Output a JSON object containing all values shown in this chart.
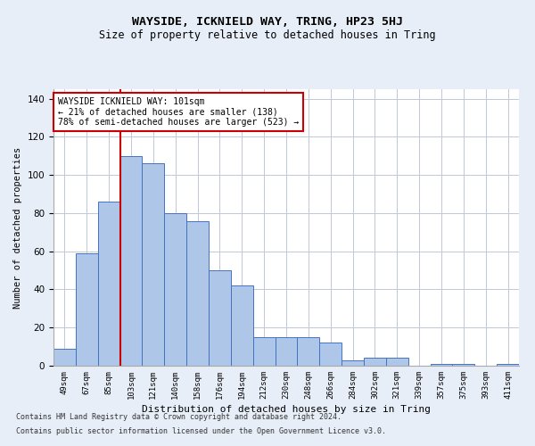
{
  "title": "WAYSIDE, ICKNIELD WAY, TRING, HP23 5HJ",
  "subtitle": "Size of property relative to detached houses in Tring",
  "xlabel": "Distribution of detached houses by size in Tring",
  "ylabel": "Number of detached properties",
  "footnote1": "Contains HM Land Registry data © Crown copyright and database right 2024.",
  "footnote2": "Contains public sector information licensed under the Open Government Licence v3.0.",
  "categories": [
    "49sqm",
    "67sqm",
    "85sqm",
    "103sqm",
    "121sqm",
    "140sqm",
    "158sqm",
    "176sqm",
    "194sqm",
    "212sqm",
    "230sqm",
    "248sqm",
    "266sqm",
    "284sqm",
    "302sqm",
    "321sqm",
    "339sqm",
    "357sqm",
    "375sqm",
    "393sqm",
    "411sqm"
  ],
  "values": [
    9,
    59,
    86,
    110,
    106,
    80,
    76,
    50,
    42,
    15,
    15,
    15,
    12,
    3,
    4,
    4,
    0,
    1,
    1,
    0,
    1
  ],
  "bar_color": "#aec6e8",
  "bar_edge_color": "#4472c4",
  "vline_x_index": 3,
  "vline_color": "#cc0000",
  "annotation_title": "WAYSIDE ICKNIELD WAY: 101sqm",
  "annotation_line1": "← 21% of detached houses are smaller (138)",
  "annotation_line2": "78% of semi-detached houses are larger (523) →",
  "annotation_box_edge": "#cc0000",
  "ylim": [
    0,
    145
  ],
  "bg_color": "#e8eef8",
  "plot_bg_color": "#ffffff",
  "grid_color": "#c0c8d8"
}
